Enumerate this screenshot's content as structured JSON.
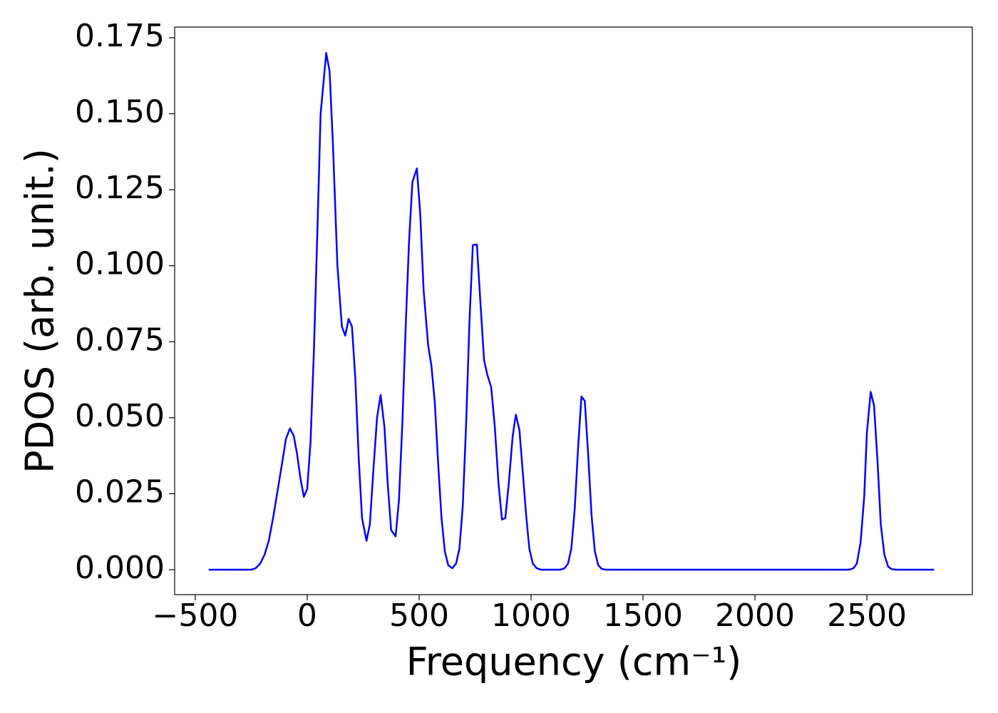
{
  "chart_data": {
    "type": "line",
    "xlabel": "Frequency (cm⁻¹)",
    "ylabel": "PDOS (arb. unit.)",
    "x": [
      -440,
      -250,
      -230,
      -210,
      -190,
      -170,
      -150,
      -130,
      -110,
      -95,
      -77,
      -60,
      -45,
      -30,
      -15,
      0,
      15,
      30,
      45,
      60,
      85,
      100,
      115,
      135,
      155,
      170,
      185,
      200,
      215,
      230,
      245,
      265,
      280,
      295,
      312,
      328,
      345,
      360,
      375,
      395,
      410,
      425,
      440,
      455,
      470,
      490,
      505,
      520,
      540,
      555,
      570,
      585,
      600,
      615,
      630,
      648,
      665,
      680,
      695,
      710,
      725,
      740,
      758,
      772,
      790,
      805,
      822,
      838,
      855,
      870,
      885,
      900,
      918,
      932,
      948,
      962,
      978,
      992,
      1008,
      1025,
      1045,
      1130,
      1150,
      1165,
      1180,
      1195,
      1210,
      1225,
      1240,
      1255,
      1270,
      1285,
      1300,
      1315,
      1335,
      2420,
      2440,
      2455,
      2472,
      2488,
      2500,
      2517,
      2532,
      2548,
      2562,
      2578,
      2595,
      2610,
      2630,
      2800
    ],
    "series": [
      {
        "name": "PDOS",
        "color": "#0000ff",
        "values": [
          0,
          0,
          0.0005,
          0.002,
          0.005,
          0.01,
          0.018,
          0.027,
          0.036,
          0.043,
          0.0465,
          0.044,
          0.038,
          0.03,
          0.024,
          0.0265,
          0.042,
          0.072,
          0.11,
          0.15,
          0.17,
          0.164,
          0.14,
          0.1,
          0.08,
          0.077,
          0.0825,
          0.08,
          0.063,
          0.037,
          0.017,
          0.0095,
          0.015,
          0.032,
          0.05,
          0.0575,
          0.047,
          0.028,
          0.013,
          0.011,
          0.023,
          0.048,
          0.08,
          0.108,
          0.1275,
          0.132,
          0.117,
          0.092,
          0.074,
          0.067,
          0.055,
          0.035,
          0.017,
          0.006,
          0.0015,
          0.0005,
          0.002,
          0.007,
          0.021,
          0.048,
          0.082,
          0.1068,
          0.107,
          0.09,
          0.069,
          0.064,
          0.06,
          0.047,
          0.028,
          0.0165,
          0.017,
          0.028,
          0.044,
          0.051,
          0.046,
          0.033,
          0.018,
          0.007,
          0.002,
          0.0005,
          0,
          0,
          0.0005,
          0.002,
          0.007,
          0.02,
          0.04,
          0.057,
          0.0555,
          0.038,
          0.018,
          0.006,
          0.0015,
          0.0003,
          0,
          0,
          0.0005,
          0.002,
          0.009,
          0.024,
          0.045,
          0.0585,
          0.054,
          0.035,
          0.015,
          0.005,
          0.001,
          0.0002,
          0,
          0
        ]
      }
    ],
    "xlim": [
      -592,
      2971
    ],
    "xticks": [
      {
        "value": -500,
        "label": "−500"
      },
      0,
      500,
      1000,
      1500,
      2000,
      2500
    ],
    "ylim": [
      -0.0082,
      0.1785
    ],
    "yticks": [
      {
        "value": 0,
        "label": "0.000"
      },
      0.025,
      {
        "value": 0.05,
        "label": "0.050"
      },
      0.075,
      {
        "value": 0.1,
        "label": "0.100"
      },
      0.125,
      {
        "value": 0.15,
        "label": "0.150"
      },
      0.175
    ]
  }
}
